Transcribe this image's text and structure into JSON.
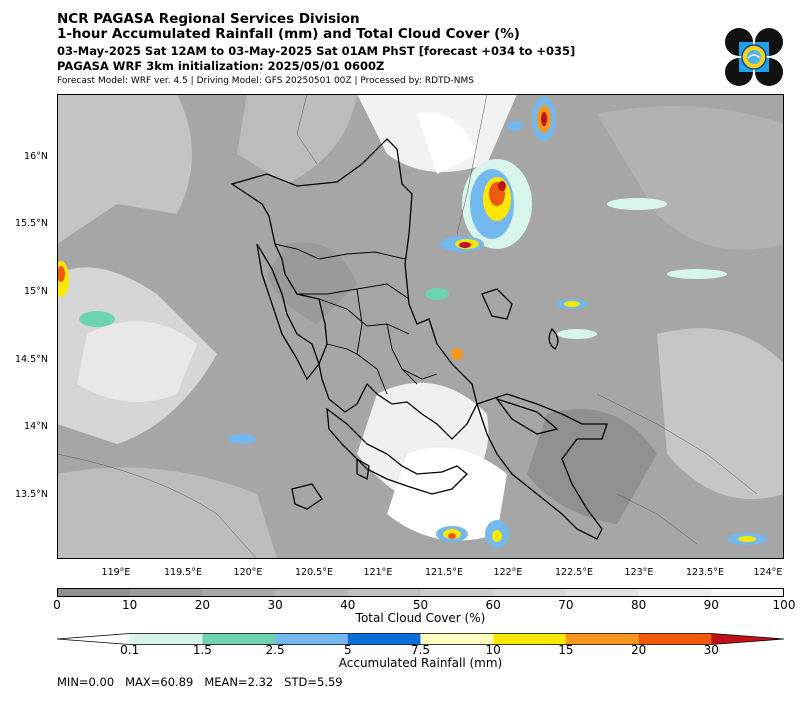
{
  "header": {
    "title": "NCR PAGASA Regional Services Division",
    "subtitle": "1-hour Accumulated Rainfall (mm) and Total Cloud Cover (%)",
    "valid_time": "03-May-2025 Sat 12AM to 03-May-2025 Sat 01AM PhST [forecast +034 to +035]",
    "init": "PAGASA WRF 3km initialization: 2025/05/01 0600Z",
    "model_info": "Forecast Model: WRF ver. 4.5 | Driving Model: GFS 20250501 00Z | Processed by: RDTD-NMS"
  },
  "logo": {
    "icon": "pagasa-seal-icon"
  },
  "map": {
    "lat_labels": [
      "16°N",
      "15.5°N",
      "15°N",
      "14.5°N",
      "14°N",
      "13.5°N"
    ],
    "lon_labels": [
      "119°E",
      "119.5°E",
      "120°E",
      "120.5°E",
      "121°E",
      "121.5°E",
      "122°E",
      "122.5°E",
      "123°E",
      "123.5°E",
      "124°E"
    ],
    "lat_range": [
      13.05,
      16.5
    ],
    "lon_range": [
      118.65,
      124.05
    ]
  },
  "cloud_scale": {
    "title": "Total Cloud Cover (%)",
    "ticks": [
      "0",
      "10",
      "20",
      "30",
      "40",
      "50",
      "60",
      "70",
      "80",
      "90",
      "100"
    ],
    "colors": [
      "#8f8f8f",
      "#9c9c9c",
      "#a9a9a9",
      "#b5b5b5",
      "#c1c1c1",
      "#cdcdcd",
      "#d8d8d8",
      "#e3e3e3",
      "#eeeeee",
      "#f8f8f8"
    ]
  },
  "rain_scale": {
    "title": "Accumulated Rainfall (mm)",
    "ticks": [
      "0.1",
      "1.5",
      "2.5",
      "5",
      "7.5",
      "10",
      "15",
      "20",
      "30"
    ],
    "colors": [
      "#ffffff",
      "#d8f5ec",
      "#6ed3b0",
      "#74b8f0",
      "#0a6fd8",
      "#fefec0",
      "#fde600",
      "#f7981d",
      "#ef5a0d",
      "#c1121b"
    ]
  },
  "stats": {
    "text": "MIN=0.00   MAX=60.89   MEAN=2.32   STD=5.59"
  }
}
